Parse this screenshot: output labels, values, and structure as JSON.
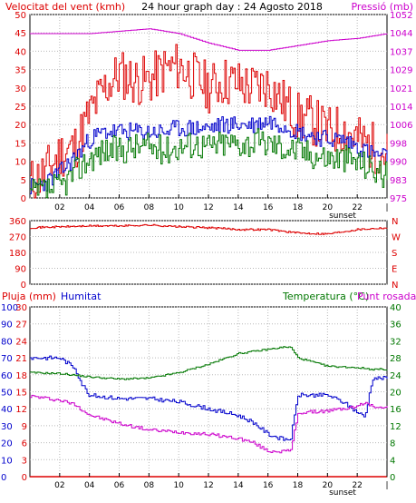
{
  "chart_data": [
    {
      "type": "line",
      "title": "24 hour graph day : 24 Agosto 2018",
      "left_label": "Velocitat del vent (kmh)",
      "right_label": "Pressió (mb)",
      "x_ticks": [
        "02",
        "04",
        "06",
        "08",
        "10",
        "12",
        "14",
        "16",
        "18",
        "20",
        "22",
        "|"
      ],
      "x_note": "sunset",
      "y_left": {
        "ticks": [
          0,
          5,
          10,
          15,
          20,
          25,
          30,
          35,
          40,
          45,
          50
        ],
        "range": [
          0,
          50
        ]
      },
      "y_right": {
        "ticks": [
          975,
          983,
          990,
          998,
          1006,
          1014,
          1021,
          1029,
          1037,
          1044,
          1052
        ],
        "range": [
          975,
          1052
        ]
      },
      "colors": {
        "gust": "#dd0000",
        "speed": "#0000cc",
        "min": "#007700",
        "pressure": "#cc00cc"
      },
      "series": [
        {
          "key": "gust",
          "axis": "left",
          "t": [
            0,
            1,
            2,
            3,
            4,
            5,
            6,
            7,
            8,
            9,
            10,
            11,
            12,
            13,
            14,
            15,
            16,
            17,
            18,
            19,
            20,
            21,
            22,
            23,
            24
          ],
          "values": [
            4,
            7,
            12,
            14,
            23,
            30,
            34,
            32,
            32,
            35,
            36,
            33,
            30,
            32,
            31,
            30,
            31,
            26,
            22,
            21,
            18,
            19,
            16,
            14,
            12
          ]
        },
        {
          "key": "speed",
          "axis": "left",
          "t": [
            0,
            1,
            2,
            3,
            4,
            5,
            6,
            7,
            8,
            9,
            10,
            11,
            12,
            13,
            14,
            15,
            16,
            17,
            18,
            19,
            20,
            21,
            22,
            23,
            24
          ],
          "values": [
            3,
            4,
            7,
            11,
            16,
            18,
            18,
            18,
            18,
            18,
            19,
            19,
            19,
            20,
            20,
            20,
            21,
            20,
            18,
            17,
            16,
            16,
            14,
            12,
            11
          ]
        },
        {
          "key": "min",
          "axis": "left",
          "t": [
            0,
            1,
            2,
            3,
            4,
            5,
            6,
            7,
            8,
            9,
            10,
            11,
            12,
            13,
            14,
            15,
            16,
            17,
            18,
            19,
            20,
            21,
            22,
            23,
            24
          ],
          "values": [
            1,
            2,
            3,
            7,
            11,
            13,
            13,
            14,
            14,
            13,
            14,
            15,
            14,
            15,
            15,
            15,
            15,
            14,
            13,
            12,
            11,
            11,
            10,
            8,
            6
          ]
        },
        {
          "key": "pressure",
          "axis": "right",
          "t": [
            0,
            2,
            4,
            6,
            8,
            10,
            12,
            14,
            16,
            18,
            20,
            22,
            24
          ],
          "values": [
            1044,
            1044,
            1044,
            1045,
            1046,
            1044,
            1040,
            1037,
            1037,
            1039,
            1041,
            1042,
            1044
          ]
        }
      ]
    },
    {
      "type": "line",
      "y_left": {
        "ticks": [
          0,
          90,
          180,
          270,
          360
        ],
        "range": [
          0,
          360
        ]
      },
      "y_right_labels": [
        "N",
        "W",
        "S",
        "E",
        "N"
      ],
      "colors": {
        "direction": "#dd0000"
      },
      "series": [
        {
          "key": "direction",
          "t": [
            0,
            2,
            4,
            6,
            8,
            10,
            12,
            14,
            16,
            18,
            20,
            22,
            24
          ],
          "values": [
            320,
            325,
            330,
            330,
            335,
            325,
            320,
            310,
            310,
            290,
            285,
            310,
            320
          ]
        }
      ]
    },
    {
      "type": "line",
      "labels": {
        "rain": "Pluja (mm)",
        "humidity": "Humitat",
        "temperature": "Temperatura (°C)",
        "dewpoint": "Punt rosada"
      },
      "y_humidity": {
        "ticks": [
          0,
          10,
          20,
          30,
          40,
          50,
          60,
          70,
          80,
          90,
          100
        ],
        "range": [
          0,
          100
        ]
      },
      "y_rain": {
        "ticks": [
          0,
          3,
          6,
          9,
          12,
          15,
          18,
          21,
          24,
          27,
          30
        ],
        "range": [
          0,
          30
        ]
      },
      "y_temp": {
        "ticks": [
          0,
          4,
          8,
          12,
          16,
          20,
          24,
          28,
          32,
          36,
          40
        ],
        "range": [
          0,
          40
        ]
      },
      "x_ticks": [
        "02",
        "04",
        "06",
        "08",
        "10",
        "12",
        "14",
        "16",
        "18",
        "20",
        "22",
        "|"
      ],
      "x_note": "sunset",
      "colors": {
        "rain": "#dd0000",
        "humidity": "#0000cc",
        "temperature": "#007700",
        "dewpoint": "#cc00cc"
      },
      "series": [
        {
          "key": "humidity",
          "t": [
            0,
            2,
            3,
            3.5,
            4,
            6,
            8,
            10,
            12,
            14,
            15,
            16,
            17,
            17.5,
            18,
            20,
            21,
            22,
            22.5,
            23,
            24
          ],
          "values": [
            70,
            70,
            64,
            54,
            48,
            46,
            46,
            44,
            40,
            36,
            32,
            25,
            22,
            22,
            48,
            48,
            44,
            38,
            35,
            58,
            58
          ]
        },
        {
          "key": "temperature",
          "t": [
            0,
            2,
            4,
            6,
            8,
            10,
            12,
            14,
            16,
            17,
            17.5,
            18,
            20,
            22,
            23,
            24
          ],
          "values": [
            24.5,
            24.3,
            23.5,
            23,
            23.2,
            24.5,
            26.5,
            29,
            30,
            30.5,
            30.5,
            28,
            26,
            25.7,
            25.3,
            25.3
          ]
        },
        {
          "key": "dewpoint",
          "t": [
            0,
            2,
            3,
            4,
            6,
            8,
            10,
            12,
            14,
            15,
            16,
            17,
            17.5,
            18,
            20,
            21,
            22,
            22.5,
            23,
            24
          ],
          "values": [
            19,
            18,
            17,
            14.5,
            12.5,
            11,
            10.5,
            10,
            9,
            8,
            6,
            6,
            6,
            15,
            15.5,
            16,
            16.5,
            17.5,
            16.5,
            16.5
          ]
        },
        {
          "key": "rain",
          "t": [
            0,
            24
          ],
          "values": [
            0,
            0
          ]
        }
      ]
    }
  ]
}
